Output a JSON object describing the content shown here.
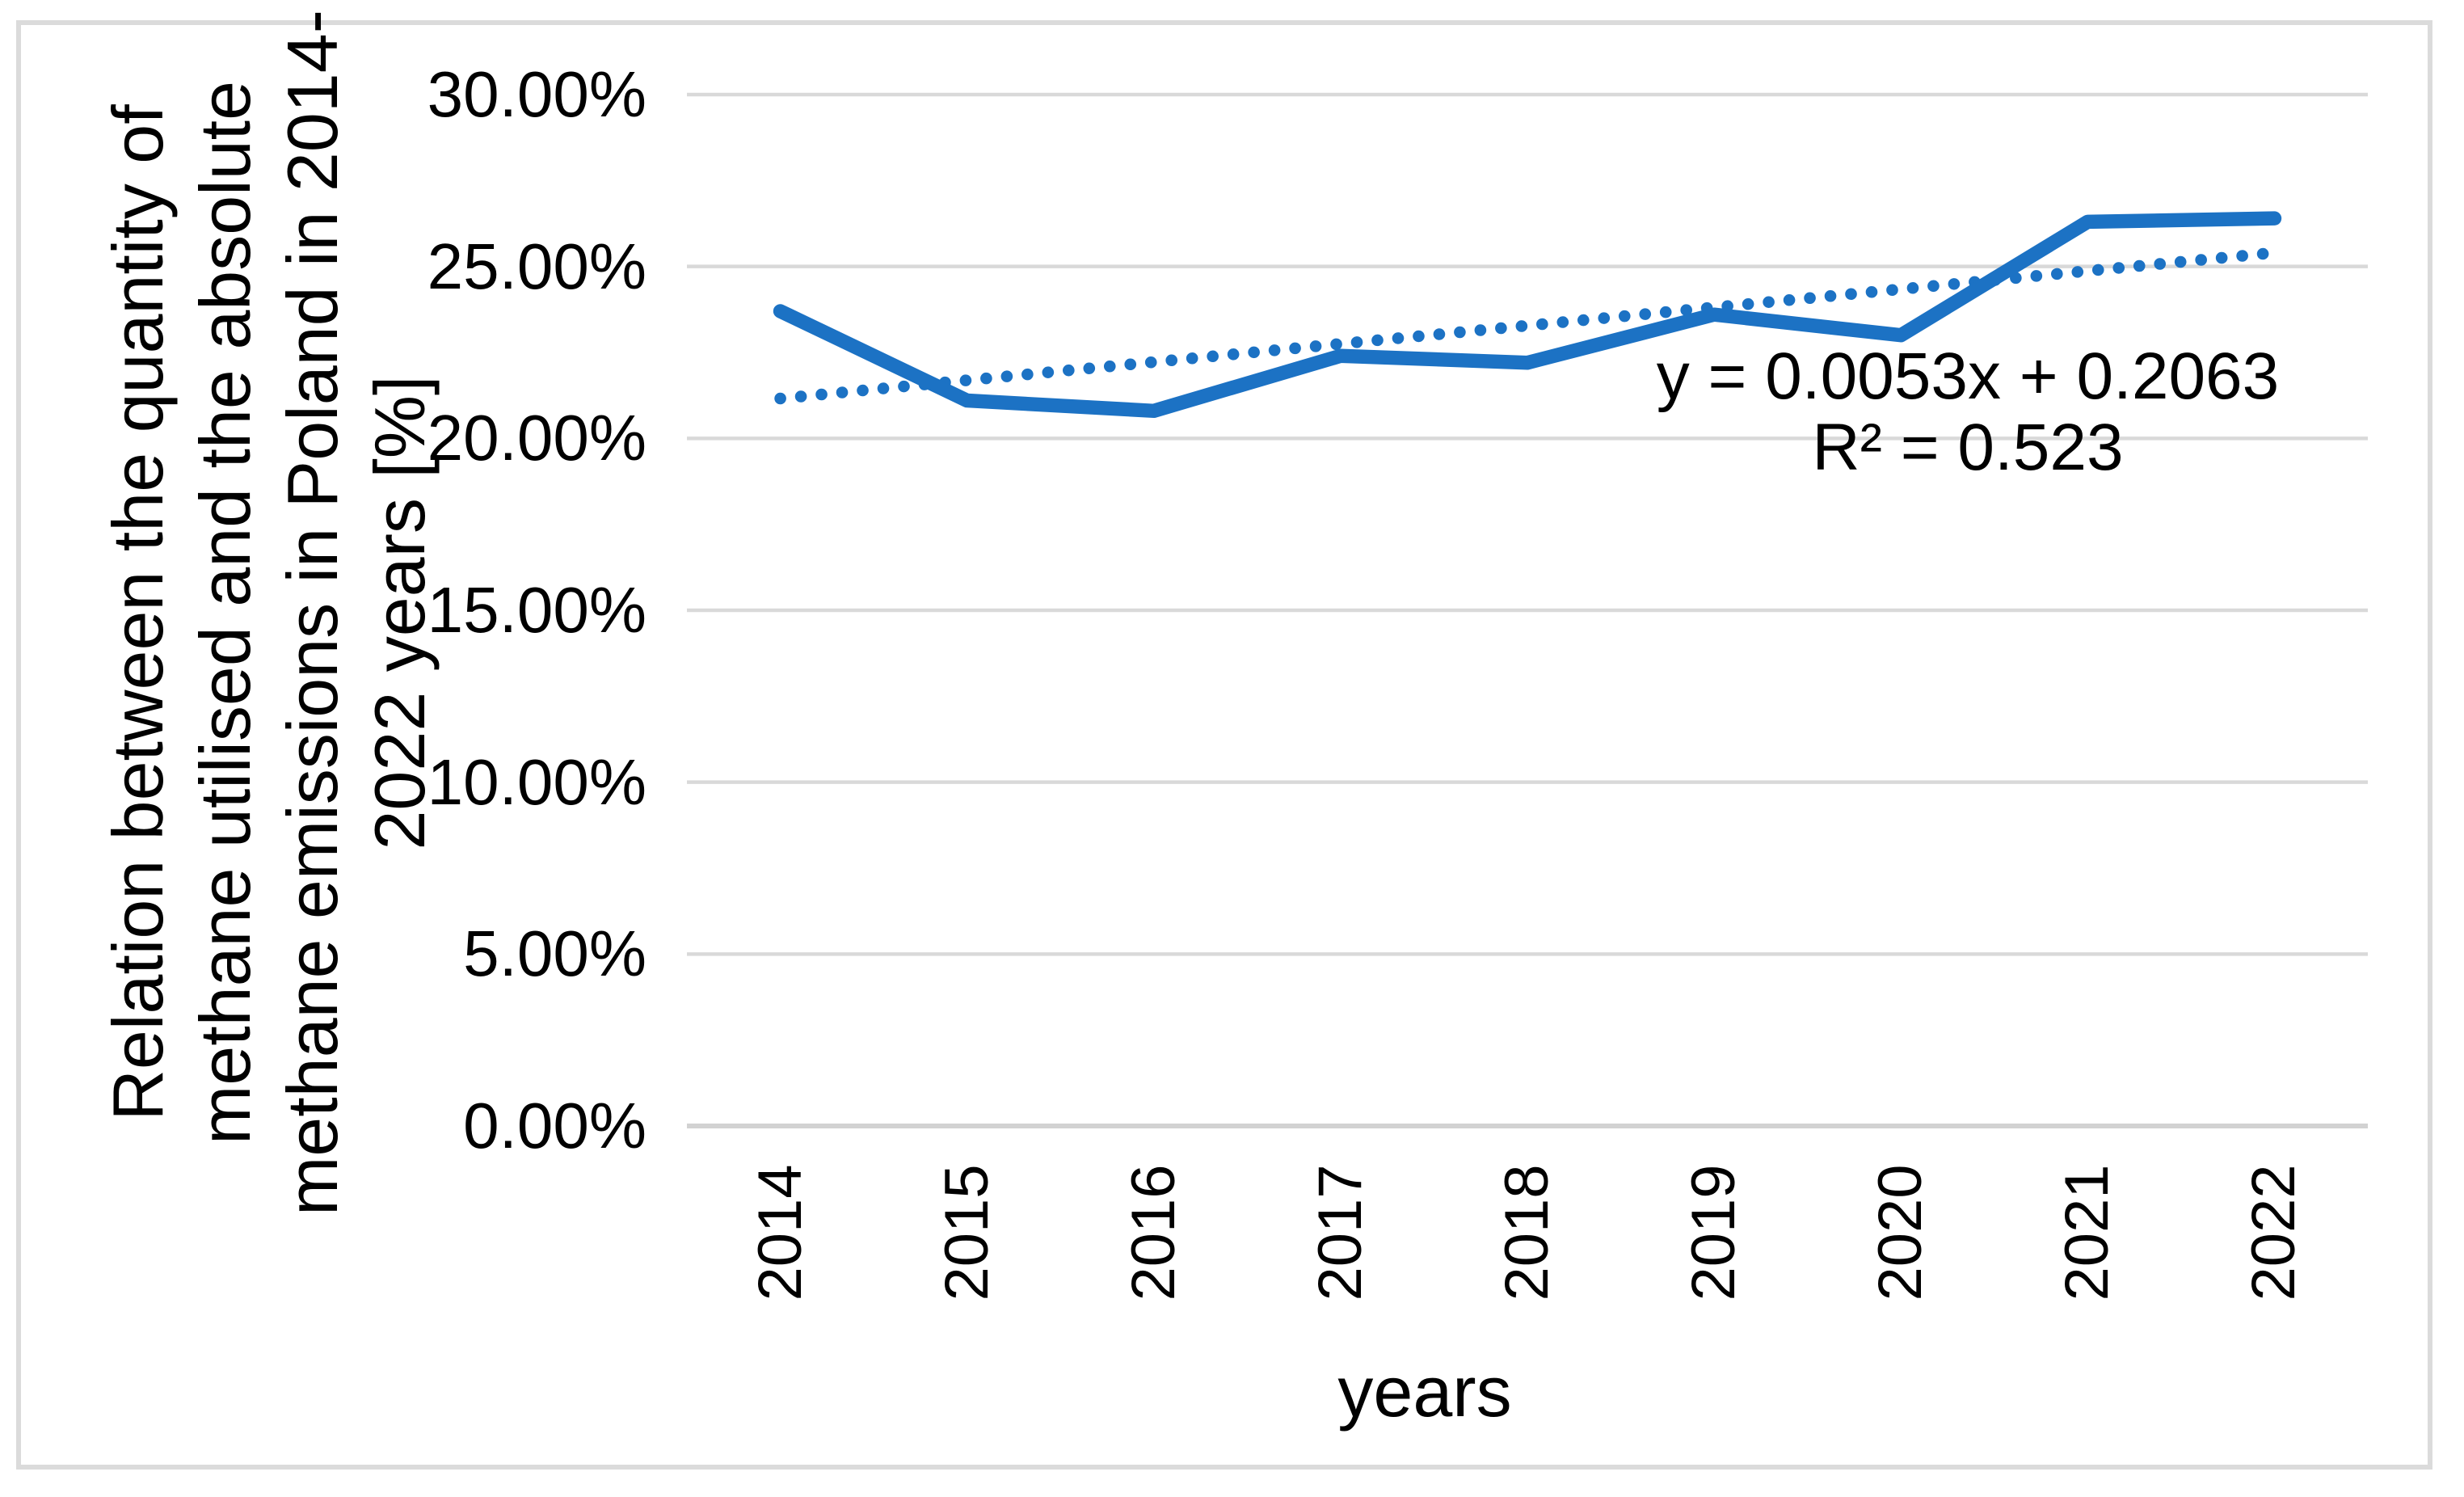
{
  "chart_data": {
    "type": "line",
    "x": [
      2014,
      2015,
      2016,
      2017,
      2018,
      2019,
      2020,
      2021,
      2022
    ],
    "series": [
      {
        "name": "relation-methane-utilised-to-emissions",
        "values": [
          23.7,
          21.1,
          20.8,
          22.4,
          22.2,
          23.6,
          23.0,
          26.3,
          26.4
        ],
        "unit": "%"
      }
    ],
    "trendline": {
      "equation": "y = 0.0053x + 0.2063",
      "r_squared": "R² = 0.523",
      "slope": 0.0053,
      "intercept": 0.2063
    },
    "xlabel": "years",
    "ylabel_lines": [
      "Relation between the quantity of",
      "methane utilised and the absolute",
      "methane emissions in Poland in 2014-",
      "2022 years [%]"
    ],
    "y_ticks": [
      "30.00%",
      "25.00%",
      "20.00%",
      "15.00%",
      "10.00%",
      "5.00%",
      "0.00%"
    ],
    "ylim": [
      0,
      30
    ],
    "grid": "horizontal",
    "legend": "none",
    "colors": {
      "line": "#1C72C4",
      "trend": "#1C72C4",
      "grid": "#D9D9D9",
      "axis": "#D2D2D2",
      "border": "#DBDBDB",
      "text": "#000000"
    }
  }
}
